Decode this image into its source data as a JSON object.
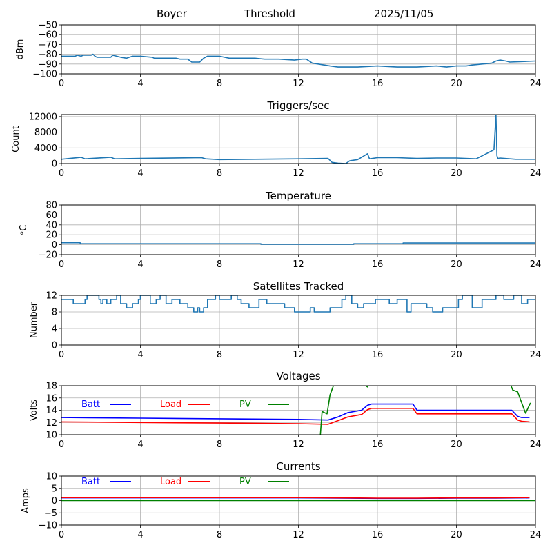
{
  "header": {
    "site": "Boyer",
    "mode": "Threshold",
    "date": "2025/11/05"
  },
  "colors": {
    "series_default": "#1f77b4",
    "batt": "#0000ff",
    "load": "#ff0000",
    "pv": "#008000",
    "grid": "#b0b0b0",
    "axis": "#000000"
  },
  "chart_data": [
    {
      "id": "signal",
      "type": "line",
      "title": "",
      "xlabel": "",
      "ylabel": "dBm",
      "xlim": [
        0,
        24
      ],
      "ylim": [
        -100,
        -50
      ],
      "xticks": [
        0,
        4,
        8,
        12,
        16,
        20,
        24
      ],
      "yticks": [
        -100,
        -90,
        -80,
        -70,
        -60,
        -50
      ],
      "ytick_labels": [
        "−100",
        "−90",
        "−80",
        "−70",
        "−60",
        "−50"
      ],
      "grid": true,
      "series": [
        {
          "name": "signal",
          "color": "#1f77b4",
          "x": [
            0,
            0.7,
            0.8,
            1.0,
            1.1,
            1.5,
            1.6,
            1.7,
            1.8,
            2.2,
            2.5,
            2.6,
            2.8,
            3.0,
            3.3,
            3.6,
            3.7,
            4.0,
            4.6,
            4.7,
            5.2,
            5.8,
            6.0,
            6.4,
            6.6,
            7.0,
            7.2,
            7.4,
            8.0,
            8.5,
            9.0,
            9.8,
            10.3,
            10.4,
            11.0,
            11.8,
            12.2,
            12.4,
            12.7,
            13.3,
            13.6,
            14.0,
            15.0,
            16.0,
            17.0,
            18.0,
            19.0,
            19.5,
            20.0,
            20.5,
            20.8,
            21.3,
            21.8,
            22.0,
            22.2,
            22.5,
            22.7,
            24
          ],
          "y": [
            -82,
            -82,
            -81,
            -82,
            -81,
            -81,
            -80,
            -82,
            -83,
            -83,
            -83,
            -81,
            -82,
            -83,
            -84,
            -82,
            -82,
            -82,
            -83,
            -84,
            -84,
            -84,
            -85,
            -85,
            -88,
            -88,
            -84,
            -82,
            -82,
            -84,
            -84,
            -84,
            -85,
            -85,
            -85,
            -86,
            -85,
            -85,
            -89,
            -91,
            -92,
            -93,
            -93,
            -92,
            -93,
            -93,
            -92,
            -93,
            -92,
            -92,
            -91,
            -90,
            -89,
            -87,
            -86,
            -87,
            -88,
            -87
          ]
        }
      ]
    },
    {
      "id": "triggers",
      "type": "line",
      "title": "Triggers/sec",
      "xlabel": "",
      "ylabel": "Count",
      "xlim": [
        0,
        24
      ],
      "ylim": [
        0,
        12500
      ],
      "xticks": [
        0,
        4,
        8,
        12,
        16,
        20,
        24
      ],
      "yticks": [
        0,
        4000,
        8000,
        12000
      ],
      "ytick_labels": [
        "0",
        "4000",
        "8000",
        "12000"
      ],
      "grid": true,
      "series": [
        {
          "name": "triggers",
          "color": "#1f77b4",
          "x": [
            0,
            1.0,
            1.2,
            2.5,
            2.7,
            4.0,
            7.1,
            7.3,
            8.0,
            12.0,
            13.5,
            13.7,
            14.0,
            14.4,
            14.6,
            15.0,
            15.5,
            15.6,
            16.0,
            17.0,
            18.0,
            19.0,
            20.0,
            21.0,
            21.9,
            22.0,
            22.05,
            22.1,
            22.2,
            23.0,
            24
          ],
          "y": [
            1100,
            1600,
            1200,
            1600,
            1200,
            1300,
            1500,
            1200,
            1000,
            1200,
            1300,
            300,
            100,
            0,
            700,
            1000,
            2500,
            1200,
            1500,
            1500,
            1300,
            1400,
            1400,
            1200,
            3500,
            12500,
            2000,
            1300,
            1400,
            1100,
            1100
          ]
        }
      ]
    },
    {
      "id": "temperature",
      "type": "line",
      "title": "Temperature",
      "xlabel": "",
      "ylabel": "°C",
      "ylabel_display": "ᵒC",
      "xlim": [
        0,
        24
      ],
      "ylim": [
        -20,
        80
      ],
      "xticks": [
        0,
        4,
        8,
        12,
        16,
        20,
        24
      ],
      "yticks": [
        -20,
        0,
        20,
        40,
        60,
        80
      ],
      "ytick_labels": [
        "−20",
        "0",
        "20",
        "40",
        "60",
        "80"
      ],
      "grid": true,
      "series": [
        {
          "name": "temperature",
          "color": "#1f77b4",
          "x": [
            0,
            0.95,
            0.95,
            10.1,
            10.1,
            14.8,
            14.8,
            17.3,
            17.3,
            24
          ],
          "y": [
            4,
            4,
            2,
            2,
            1,
            1,
            2,
            2,
            3.5,
            3.5
          ]
        }
      ]
    },
    {
      "id": "satellites",
      "type": "line",
      "title": "Satellites Tracked",
      "xlabel": "",
      "ylabel": "Number",
      "xlim": [
        0,
        24
      ],
      "ylim": [
        0,
        12
      ],
      "xticks": [
        0,
        4,
        8,
        12,
        16,
        20,
        24
      ],
      "yticks": [
        0,
        4,
        8,
        12
      ],
      "ytick_labels": [
        "0",
        "4",
        "8",
        "12"
      ],
      "grid": true,
      "series": [
        {
          "name": "satellites",
          "color": "#1f77b4",
          "x": [
            0,
            0.6,
            0.6,
            1.2,
            1.2,
            1.3,
            1.3,
            1.9,
            1.9,
            2.0,
            2.0,
            2.1,
            2.1,
            2.3,
            2.3,
            2.5,
            2.5,
            2.8,
            2.8,
            3.0,
            3.0,
            3.3,
            3.3,
            3.6,
            3.6,
            3.9,
            3.9,
            4.0,
            4.0,
            4.5,
            4.5,
            4.8,
            4.8,
            5.0,
            5.0,
            5.3,
            5.3,
            5.6,
            5.6,
            6.0,
            6.0,
            6.4,
            6.4,
            6.7,
            6.7,
            6.9,
            6.9,
            7.0,
            7.0,
            7.2,
            7.2,
            7.4,
            7.4,
            7.8,
            7.8,
            8.0,
            8.0,
            8.6,
            8.6,
            8.9,
            8.9,
            9.1,
            9.1,
            9.5,
            9.5,
            10.0,
            10.0,
            10.4,
            10.4,
            11.3,
            11.3,
            11.8,
            11.8,
            12.6,
            12.6,
            12.8,
            12.8,
            13.6,
            13.6,
            14.2,
            14.2,
            14.4,
            14.4,
            14.7,
            14.7,
            15.0,
            15.0,
            15.3,
            15.3,
            15.9,
            15.9,
            16.6,
            16.6,
            17.0,
            17.0,
            17.5,
            17.5,
            17.7,
            17.7,
            18.5,
            18.5,
            18.8,
            18.8,
            19.3,
            19.3,
            20.1,
            20.1,
            20.3,
            20.3,
            20.8,
            20.8,
            21.3,
            21.3,
            22.0,
            22.0,
            22.4,
            22.4,
            22.9,
            22.9,
            23.3,
            23.3,
            23.6,
            23.6,
            24
          ],
          "y": [
            11,
            11,
            10,
            10,
            11,
            11,
            12,
            12,
            11,
            11,
            10,
            10,
            11,
            11,
            10,
            10,
            11,
            11,
            12,
            12,
            10,
            10,
            9,
            9,
            10,
            10,
            11,
            11,
            12,
            12,
            10,
            10,
            11,
            11,
            12,
            12,
            10,
            10,
            11,
            11,
            10,
            10,
            9,
            9,
            8,
            8,
            9,
            9,
            8,
            8,
            9,
            9,
            11,
            11,
            12,
            12,
            11,
            11,
            12,
            12,
            11,
            11,
            10,
            10,
            9,
            9,
            11,
            11,
            10,
            10,
            9,
            9,
            8,
            8,
            9,
            9,
            8,
            8,
            9,
            9,
            11,
            11,
            12,
            12,
            10,
            10,
            9,
            9,
            10,
            10,
            11,
            11,
            10,
            10,
            11,
            11,
            8,
            8,
            10,
            10,
            9,
            9,
            8,
            8,
            9,
            9,
            11,
            11,
            12,
            12,
            9,
            9,
            11,
            11,
            12,
            12,
            11,
            11,
            12,
            12,
            10,
            10,
            11,
            11
          ]
        }
      ]
    },
    {
      "id": "voltages",
      "type": "line",
      "title": "Voltages",
      "xlabel": "",
      "ylabel": "Volts",
      "xlim": [
        0,
        24
      ],
      "ylim": [
        10,
        18
      ],
      "xticks": [
        0,
        4,
        8,
        12,
        16,
        20,
        24
      ],
      "yticks": [
        10,
        12,
        14,
        16,
        18
      ],
      "ytick_labels": [
        "10",
        "12",
        "14",
        "16",
        "18"
      ],
      "grid": true,
      "legend": {
        "placement": "upper-left-inline",
        "entries": [
          "Batt",
          "Load",
          "PV"
        ]
      },
      "series": [
        {
          "name": "Batt",
          "color": "#0000ff",
          "x": [
            0,
            4,
            8,
            12,
            13.5,
            14.0,
            14.5,
            15.2,
            15.5,
            15.7,
            17.8,
            18.0,
            20.0,
            22.8,
            23.1,
            23.3,
            23.7
          ],
          "y": [
            12.8,
            12.7,
            12.6,
            12.5,
            12.4,
            12.9,
            13.6,
            14.0,
            14.8,
            15.0,
            15.0,
            14.0,
            14.0,
            14.0,
            13.0,
            12.8,
            12.8
          ]
        },
        {
          "name": "Load",
          "color": "#ff0000",
          "x": [
            0,
            4,
            8,
            12,
            13.5,
            14.0,
            14.5,
            15.2,
            15.5,
            15.7,
            17.8,
            18.0,
            20.0,
            22.8,
            23.1,
            23.3,
            23.7
          ],
          "y": [
            12.1,
            12.0,
            11.9,
            11.8,
            11.7,
            12.3,
            12.9,
            13.3,
            14.1,
            14.3,
            14.3,
            13.4,
            13.4,
            13.4,
            12.4,
            12.2,
            12.1
          ]
        },
        {
          "name": "PV",
          "color": "#008000",
          "x": [
            13.1,
            13.2,
            13.45,
            13.6,
            14.0,
            15.4,
            15.5,
            15.6,
            22.7,
            22.85,
            23.1,
            23.5,
            23.75
          ],
          "y": [
            9.5,
            13.8,
            13.4,
            16.5,
            20.0,
            18.0,
            17.8,
            18.5,
            18.5,
            17.3,
            17.0,
            13.5,
            15.2
          ]
        }
      ]
    },
    {
      "id": "currents",
      "type": "line",
      "title": "Currents",
      "xlabel": "",
      "ylabel": "Amps",
      "xlim": [
        0,
        24
      ],
      "ylim": [
        -10,
        10
      ],
      "xticks": [
        0,
        4,
        8,
        12,
        16,
        20,
        24
      ],
      "yticks": [
        -10,
        -5,
        0,
        5,
        10
      ],
      "ytick_labels": [
        "−10",
        "−5",
        "0",
        "5",
        "10"
      ],
      "grid": true,
      "legend": {
        "placement": "upper-left-inline",
        "entries": [
          "Batt",
          "Load",
          "PV"
        ]
      },
      "series": [
        {
          "name": "Batt",
          "color": "#0000ff",
          "x": [
            0,
            12,
            14,
            16,
            18,
            20,
            22,
            23.7
          ],
          "y": [
            1.1,
            1.1,
            1.0,
            0.9,
            0.9,
            1.0,
            1.0,
            1.1
          ]
        },
        {
          "name": "Load",
          "color": "#ff0000",
          "x": [
            0,
            12,
            14,
            16,
            18,
            20,
            22,
            23.7
          ],
          "y": [
            1.2,
            1.2,
            1.1,
            1.0,
            1.0,
            1.1,
            1.1,
            1.2
          ]
        },
        {
          "name": "PV",
          "color": "#008000",
          "x": [
            0,
            24
          ],
          "y": [
            0.0,
            0.0
          ]
        }
      ]
    }
  ]
}
